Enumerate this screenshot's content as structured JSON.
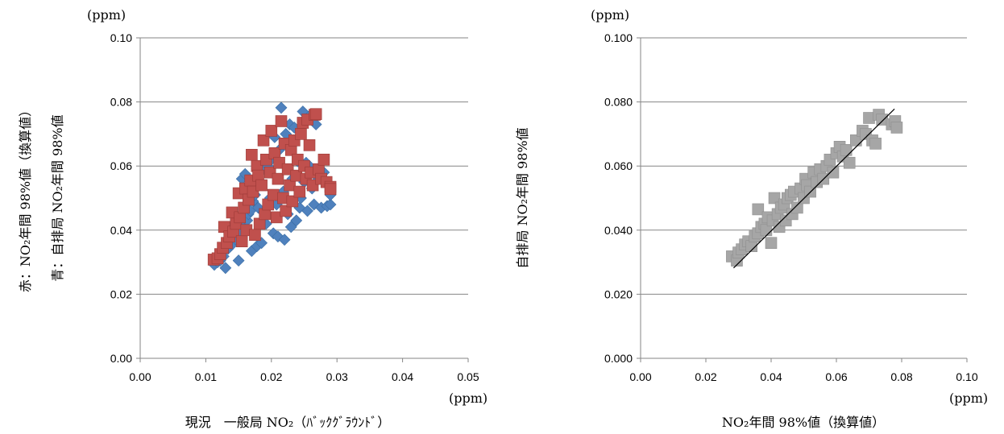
{
  "chart_data": [
    {
      "type": "scatter",
      "unit_y": "(ppm)",
      "unit_x": "(ppm)",
      "xlabel": "現況　一般局 NO₂（ﾊﾞｯｸｸﾞﾗｳﾝﾄﾞ）",
      "ylabel_red": "赤：NO₂年間 98%値（換算値）",
      "ylabel_blue": "青：自排局 NO₂年間 98%値",
      "xlim": [
        0,
        0.05
      ],
      "ylim": [
        0,
        0.1
      ],
      "x_ticks": [
        "0.00",
        "0.01",
        "0.02",
        "0.03",
        "0.04",
        "0.05"
      ],
      "y_ticks": [
        "0.00",
        "0.02",
        "0.04",
        "0.06",
        "0.08",
        "0.10"
      ],
      "grid": "horizontal",
      "series": [
        {
          "color": "#4f81bd",
          "marker": "diamond",
          "points": [
            [
              0.0113,
              0.0292
            ],
            [
              0.0118,
              0.03
            ],
            [
              0.0122,
              0.0305
            ],
            [
              0.013,
              0.0282
            ],
            [
              0.0127,
              0.0318
            ],
            [
              0.0134,
              0.0342
            ],
            [
              0.014,
              0.0355
            ],
            [
              0.0145,
              0.0372
            ],
            [
              0.015,
              0.0305
            ],
            [
              0.0152,
              0.0392
            ],
            [
              0.0155,
              0.056
            ],
            [
              0.0158,
              0.041
            ],
            [
              0.016,
              0.0575
            ],
            [
              0.0163,
              0.043
            ],
            [
              0.0165,
              0.045
            ],
            [
              0.0168,
              0.046
            ],
            [
              0.017,
              0.0335
            ],
            [
              0.0172,
              0.049
            ],
            [
              0.0175,
              0.051
            ],
            [
              0.0178,
              0.035
            ],
            [
              0.018,
              0.047
            ],
            [
              0.0182,
              0.054
            ],
            [
              0.0185,
              0.036
            ],
            [
              0.0188,
              0.0455
            ],
            [
              0.019,
              0.059
            ],
            [
              0.0192,
              0.042
            ],
            [
              0.0195,
              0.06
            ],
            [
              0.0198,
              0.05
            ],
            [
              0.02,
              0.062
            ],
            [
              0.0203,
              0.039
            ],
            [
              0.0205,
              0.069
            ],
            [
              0.0208,
              0.048
            ],
            [
              0.021,
              0.038
            ],
            [
              0.0212,
              0.065
            ],
            [
              0.0215,
              0.0782
            ],
            [
              0.0218,
              0.052
            ],
            [
              0.022,
              0.037
            ],
            [
              0.0222,
              0.07
            ],
            [
              0.0225,
              0.045
            ],
            [
              0.0228,
              0.073
            ],
            [
              0.023,
              0.041
            ],
            [
              0.0232,
              0.056
            ],
            [
              0.0235,
              0.072
            ],
            [
              0.0238,
              0.043
            ],
            [
              0.024,
              0.0615
            ],
            [
              0.0243,
              0.047
            ],
            [
              0.0245,
              0.05
            ],
            [
              0.0248,
              0.077
            ],
            [
              0.025,
              0.055
            ],
            [
              0.0253,
              0.061
            ],
            [
              0.0255,
              0.046
            ],
            [
              0.0258,
              0.06
            ],
            [
              0.026,
              0.076
            ],
            [
              0.0262,
              0.053
            ],
            [
              0.0265,
              0.048
            ],
            [
              0.0268,
              0.073
            ],
            [
              0.0272,
              0.056
            ],
            [
              0.0276,
              0.047
            ],
            [
              0.028,
              0.058
            ],
            [
              0.0285,
              0.0475
            ],
            [
              0.029,
              0.048
            ],
            [
              0.029,
              0.051
            ]
          ]
        },
        {
          "color": "#c0504d",
          "marker": "square",
          "points": [
            [
              0.0112,
              0.0308
            ],
            [
              0.0118,
              0.0312
            ],
            [
              0.0122,
              0.0325
            ],
            [
              0.0126,
              0.0345
            ],
            [
              0.0128,
              0.041
            ],
            [
              0.0132,
              0.036
            ],
            [
              0.0136,
              0.038
            ],
            [
              0.014,
              0.0455
            ],
            [
              0.0142,
              0.0395
            ],
            [
              0.0146,
              0.042
            ],
            [
              0.015,
              0.0515
            ],
            [
              0.0152,
              0.044
            ],
            [
              0.0155,
              0.0365
            ],
            [
              0.0158,
              0.047
            ],
            [
              0.016,
              0.053
            ],
            [
              0.0162,
              0.04
            ],
            [
              0.0165,
              0.0495
            ],
            [
              0.0168,
              0.0555
            ],
            [
              0.017,
              0.0635
            ],
            [
              0.0172,
              0.052
            ],
            [
              0.0175,
              0.0385
            ],
            [
              0.0178,
              0.06
            ],
            [
              0.018,
              0.057
            ],
            [
              0.0182,
              0.042
            ],
            [
              0.0185,
              0.054
            ],
            [
              0.0188,
              0.068
            ],
            [
              0.019,
              0.045
            ],
            [
              0.0192,
              0.062
            ],
            [
              0.0195,
              0.048
            ],
            [
              0.0198,
              0.058
            ],
            [
              0.02,
              0.071
            ],
            [
              0.0203,
              0.051
            ],
            [
              0.0205,
              0.064
            ],
            [
              0.0208,
              0.044
            ],
            [
              0.021,
              0.056
            ],
            [
              0.0212,
              0.061
            ],
            [
              0.0215,
              0.074
            ],
            [
              0.0218,
              0.05
            ],
            [
              0.022,
              0.067
            ],
            [
              0.0222,
              0.046
            ],
            [
              0.0225,
              0.059
            ],
            [
              0.0228,
              0.054
            ],
            [
              0.023,
              0.065
            ],
            [
              0.0232,
              0.049
            ],
            [
              0.0235,
              0.068
            ],
            [
              0.0238,
              0.057
            ],
            [
              0.024,
              0.062
            ],
            [
              0.0243,
              0.052
            ],
            [
              0.0245,
              0.07
            ],
            [
              0.0248,
              0.0735
            ],
            [
              0.025,
              0.06
            ],
            [
              0.0253,
              0.056
            ],
            [
              0.0255,
              0.0745
            ],
            [
              0.0258,
              0.0665
            ],
            [
              0.026,
              0.058
            ],
            [
              0.0263,
              0.054
            ],
            [
              0.0266,
              0.076
            ],
            [
              0.0268,
              0.0762
            ],
            [
              0.0272,
              0.059
            ],
            [
              0.0276,
              0.056
            ],
            [
              0.028,
              0.062
            ],
            [
              0.0284,
              0.055
            ],
            [
              0.029,
              0.0535
            ],
            [
              0.029,
              0.0528
            ]
          ]
        }
      ]
    },
    {
      "type": "scatter",
      "unit_y": "(ppm)",
      "unit_x": "(ppm)",
      "xlabel": "NO₂年間 98%値（換算値）",
      "ylabel": "自排局 NO₂年間 98%値",
      "xlim": [
        0,
        0.1
      ],
      "ylim": [
        0,
        0.1
      ],
      "x_ticks": [
        "0.00",
        "0.02",
        "0.04",
        "0.06",
        "0.08",
        "0.10"
      ],
      "y_ticks": [
        "0.000",
        "0.020",
        "0.040",
        "0.060",
        "0.080",
        "0.100"
      ],
      "grid": "horizontal",
      "trendline": [
        [
          0.0285,
          0.0282
        ],
        [
          0.0778,
          0.0778
        ]
      ],
      "series": [
        {
          "color": "#a6a6a6",
          "marker": "square",
          "points": [
            [
              0.028,
              0.0318
            ],
            [
              0.0295,
              0.0305
            ],
            [
              0.03,
              0.033
            ],
            [
              0.031,
              0.034
            ],
            [
              0.032,
              0.0355
            ],
            [
              0.033,
              0.0365
            ],
            [
              0.034,
              0.035
            ],
            [
              0.035,
              0.038
            ],
            [
              0.036,
              0.039
            ],
            [
              0.036,
              0.0465
            ],
            [
              0.037,
              0.041
            ],
            [
              0.038,
              0.042
            ],
            [
              0.0385,
              0.04
            ],
            [
              0.039,
              0.044
            ],
            [
              0.04,
              0.036
            ],
            [
              0.0405,
              0.043
            ],
            [
              0.041,
              0.05
            ],
            [
              0.042,
              0.045
            ],
            [
              0.0425,
              0.041
            ],
            [
              0.043,
              0.047
            ],
            [
              0.044,
              0.048
            ],
            [
              0.0445,
              0.043
            ],
            [
              0.045,
              0.05
            ],
            [
              0.046,
              0.051
            ],
            [
              0.0465,
              0.045
            ],
            [
              0.047,
              0.052
            ],
            [
              0.048,
              0.047
            ],
            [
              0.049,
              0.053
            ],
            [
              0.05,
              0.05
            ],
            [
              0.0505,
              0.056
            ],
            [
              0.051,
              0.054
            ],
            [
              0.052,
              0.052
            ],
            [
              0.053,
              0.058
            ],
            [
              0.054,
              0.055
            ],
            [
              0.055,
              0.059
            ],
            [
              0.056,
              0.056
            ],
            [
              0.057,
              0.06
            ],
            [
              0.058,
              0.062
            ],
            [
              0.059,
              0.058
            ],
            [
              0.06,
              0.064
            ],
            [
              0.061,
              0.066
            ],
            [
              0.062,
              0.063
            ],
            [
              0.063,
              0.065
            ],
            [
              0.064,
              0.061
            ],
            [
              0.066,
              0.068
            ],
            [
              0.068,
              0.071
            ],
            [
              0.069,
              0.07
            ],
            [
              0.07,
              0.075
            ],
            [
              0.071,
              0.068
            ],
            [
              0.072,
              0.067
            ],
            [
              0.073,
              0.076
            ],
            [
              0.074,
              0.0745
            ],
            [
              0.077,
              0.073
            ],
            [
              0.078,
              0.074
            ],
            [
              0.0785,
              0.072
            ]
          ]
        }
      ]
    }
  ]
}
